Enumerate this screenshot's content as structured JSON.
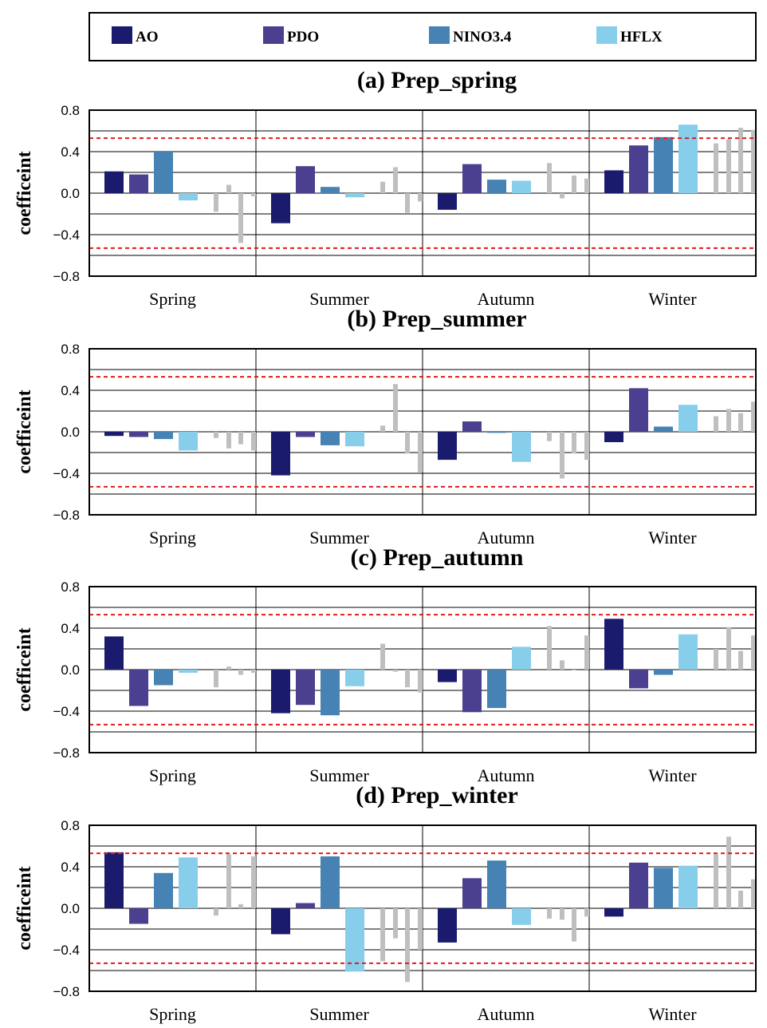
{
  "colors": {
    "AO": "#1b1b6e",
    "PDO": "#4b3f8f",
    "NINO3.4": "#4682b4",
    "HFLX": "#87ceeb",
    "minor": "#bfbfbf",
    "threshold": "#e31a1c",
    "grid": "#000000"
  },
  "legend": {
    "placement": "top",
    "entries": [
      "AO",
      "PDO",
      "NINO3.4",
      "HFLX"
    ]
  },
  "chart_data": [
    {
      "type": "bar",
      "title": "(a) Prep_spring",
      "ylabel": "coefficeint",
      "ylim": [
        -0.8,
        0.8
      ],
      "yticks": [
        "0.8",
        "0.4",
        "0.0",
        "−0.4",
        "−0.8"
      ],
      "categories": [
        "Spring",
        "Summer",
        "Autumn",
        "Winter"
      ],
      "significance": [
        0.53,
        -0.53
      ],
      "series": [
        {
          "name": "AO",
          "values": [
            0.21,
            -0.29,
            -0.16,
            0.22
          ]
        },
        {
          "name": "PDO",
          "values": [
            0.18,
            0.26,
            0.28,
            0.46
          ]
        },
        {
          "name": "NINO3.4",
          "values": [
            0.4,
            0.06,
            0.13,
            0.54
          ]
        },
        {
          "name": "HFLX",
          "values": [
            -0.07,
            -0.04,
            0.12,
            0.66
          ]
        }
      ],
      "minor_bars": [
        [
          -0.18,
          0.08,
          -0.48,
          -0.03
        ],
        [
          0.11,
          0.25,
          -0.19,
          -0.08
        ],
        [
          0.29,
          -0.05,
          0.17,
          0.14
        ],
        [
          0.48,
          0.52,
          0.63,
          0.61
        ]
      ]
    },
    {
      "type": "bar",
      "title": "(b) Prep_summer",
      "ylabel": "coefficeint",
      "ylim": [
        -0.8,
        0.8
      ],
      "yticks": [
        "0.8",
        "0.4",
        "0.0",
        "−0.4",
        "−0.8"
      ],
      "categories": [
        "Spring",
        "Summer",
        "Autumn",
        "Winter"
      ],
      "significance": [
        0.53,
        -0.53
      ],
      "series": [
        {
          "name": "AO",
          "values": [
            -0.04,
            -0.42,
            -0.27,
            -0.1
          ]
        },
        {
          "name": "PDO",
          "values": [
            -0.05,
            -0.05,
            0.1,
            0.42
          ]
        },
        {
          "name": "NINO3.4",
          "values": [
            -0.07,
            -0.13,
            -0.01,
            0.05
          ]
        },
        {
          "name": "HFLX",
          "values": [
            -0.18,
            -0.14,
            -0.29,
            0.26
          ]
        }
      ],
      "minor_bars": [
        [
          -0.06,
          -0.16,
          -0.12,
          -0.18
        ],
        [
          0.06,
          0.46,
          -0.21,
          -0.39
        ],
        [
          -0.09,
          -0.45,
          -0.21,
          -0.27
        ],
        [
          0.15,
          0.22,
          0.18,
          0.29
        ]
      ]
    },
    {
      "type": "bar",
      "title": "(c) Prep_autumn",
      "ylabel": "coefficeint",
      "ylim": [
        -0.8,
        0.8
      ],
      "yticks": [
        "0.8",
        "0.4",
        "0.0",
        "−0.4",
        "−0.8"
      ],
      "categories": [
        "Spring",
        "Summer",
        "Autumn",
        "Winter"
      ],
      "significance": [
        0.53,
        -0.53
      ],
      "series": [
        {
          "name": "AO",
          "values": [
            0.32,
            -0.42,
            -0.12,
            0.49
          ]
        },
        {
          "name": "PDO",
          "values": [
            -0.35,
            -0.34,
            -0.41,
            -0.18
          ]
        },
        {
          "name": "NINO3.4",
          "values": [
            -0.15,
            -0.44,
            -0.37,
            -0.05
          ]
        },
        {
          "name": "HFLX",
          "values": [
            -0.03,
            -0.16,
            0.22,
            0.34
          ]
        }
      ],
      "minor_bars": [
        [
          -0.17,
          0.03,
          -0.05,
          -0.03
        ],
        [
          0.25,
          -0.02,
          -0.17,
          -0.22
        ],
        [
          0.42,
          0.09,
          0.0,
          0.33
        ],
        [
          0.2,
          0.41,
          0.18,
          0.33
        ]
      ]
    },
    {
      "type": "bar",
      "title": "(d) Prep_winter",
      "ylabel": "coefficeint",
      "ylim": [
        -0.8,
        0.8
      ],
      "yticks": [
        "0.8",
        "0.4",
        "0.0",
        "−0.4",
        "−0.8"
      ],
      "categories": [
        "Spring",
        "Summer",
        "Autumn",
        "Winter"
      ],
      "significance": [
        0.53,
        -0.53
      ],
      "series": [
        {
          "name": "AO",
          "values": [
            0.54,
            -0.25,
            -0.33,
            -0.08
          ]
        },
        {
          "name": "PDO",
          "values": [
            -0.15,
            0.05,
            0.29,
            0.44
          ]
        },
        {
          "name": "NINO3.4",
          "values": [
            0.34,
            0.5,
            0.46,
            0.39
          ]
        },
        {
          "name": "HFLX",
          "values": [
            0.49,
            -0.61,
            -0.16,
            0.41
          ]
        }
      ],
      "minor_bars": [
        [
          -0.07,
          0.52,
          0.04,
          0.5
        ],
        [
          -0.51,
          -0.29,
          -0.71,
          -0.4
        ],
        [
          -0.1,
          -0.11,
          -0.32,
          -0.08
        ],
        [
          0.52,
          0.69,
          0.17,
          0.28
        ]
      ]
    }
  ]
}
